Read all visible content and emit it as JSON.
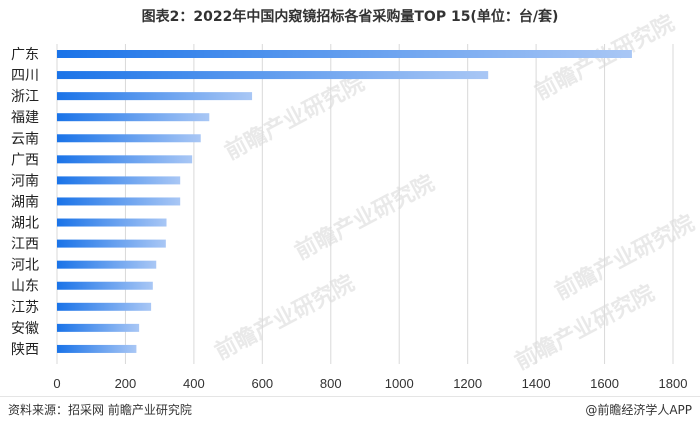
{
  "title": "图表2：2022年中国内窥镜招标各省采购量TOP 15(单位：台/套)",
  "footer": {
    "source": "资料来源：招采网 前瞻产业研究院",
    "brand": "@前瞻经济学人APP"
  },
  "watermark_text": "前瞻产业研究院",
  "colors": {
    "bar_start": "#1a73e8",
    "bar_end": "#a9c7f5",
    "grid": "#d9d9d9"
  },
  "chart_data": {
    "type": "bar",
    "orientation": "horizontal",
    "title": "图表2：2022年中国内窥镜招标各省采购量TOP 15(单位：台/套)",
    "categories": [
      "广东",
      "四川",
      "浙江",
      "福建",
      "云南",
      "广西",
      "河南",
      "湖南",
      "湖北",
      "江西",
      "河北",
      "山东",
      "江苏",
      "安徽",
      "陕西"
    ],
    "values": [
      1680,
      1260,
      570,
      445,
      420,
      395,
      360,
      360,
      320,
      318,
      290,
      280,
      275,
      240,
      232
    ],
    "xlim": [
      0,
      1800
    ],
    "xticks": [
      0,
      200,
      400,
      600,
      800,
      1000,
      1200,
      1400,
      1600,
      1800
    ],
    "grid": "vertical",
    "xlabel": "",
    "ylabel": ""
  }
}
